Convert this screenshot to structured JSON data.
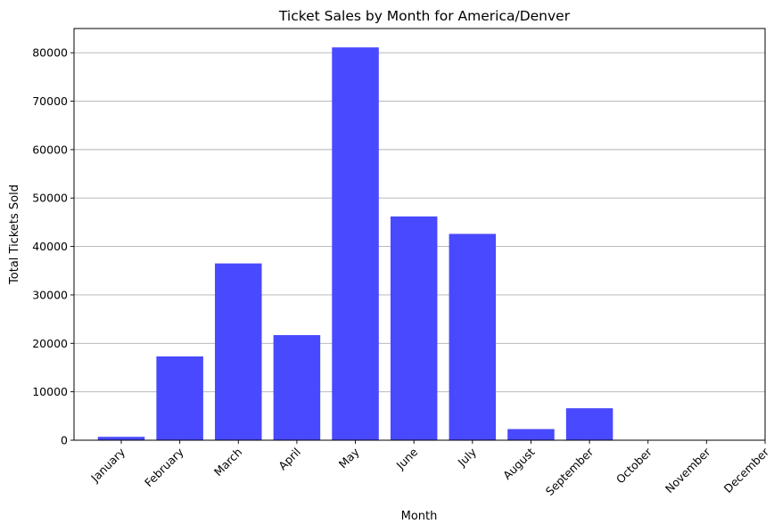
{
  "chart_data": {
    "type": "bar",
    "title": "Ticket Sales by Month for America/Denver",
    "xlabel": "Month",
    "ylabel": "Total Tickets Sold",
    "categories": [
      "January",
      "February",
      "March",
      "April",
      "May",
      "June",
      "July",
      "August",
      "September",
      "October",
      "November",
      "December"
    ],
    "values": [
      700,
      17300,
      36500,
      21700,
      81100,
      46200,
      42600,
      2300,
      6600,
      0,
      0,
      0
    ],
    "ylim": [
      0,
      85000
    ],
    "yticks": [
      0,
      10000,
      20000,
      30000,
      40000,
      50000,
      60000,
      70000,
      80000
    ],
    "grid": "horizontal",
    "bar_color": "#4949ff"
  }
}
